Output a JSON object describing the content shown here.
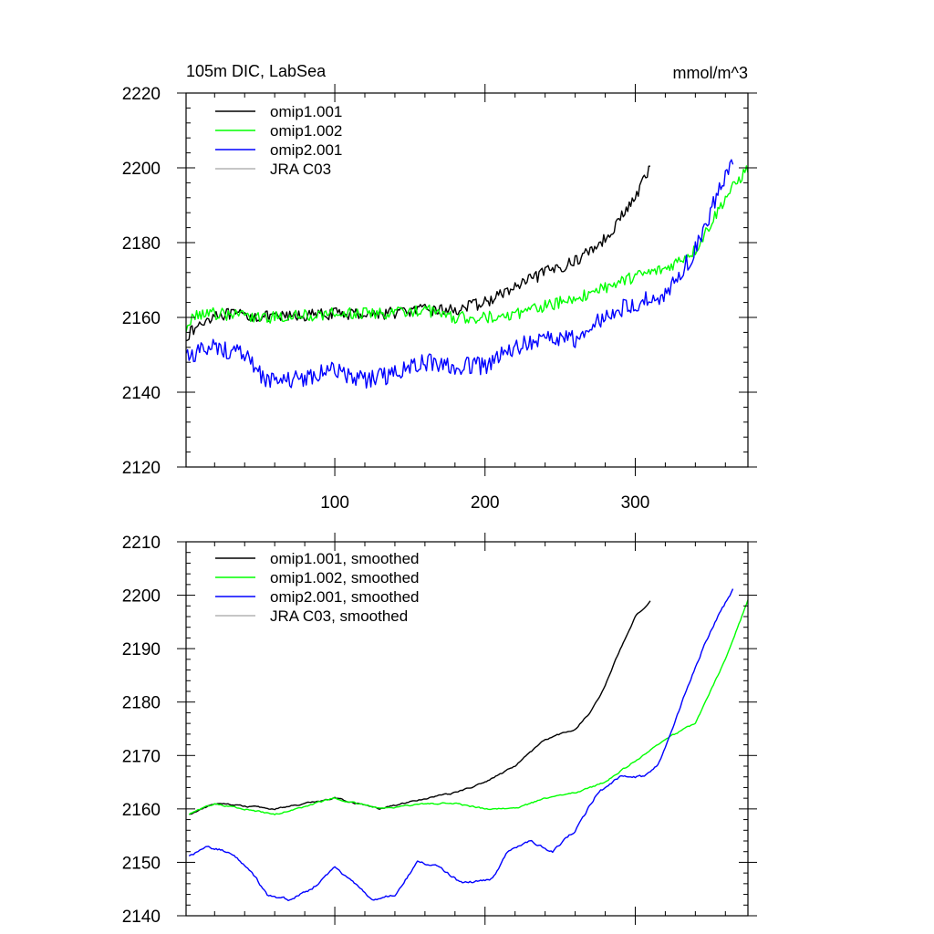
{
  "figure": {
    "title_left": "105m DIC, LabSea",
    "title_right": "mmol/m^3"
  },
  "chart_data": [
    {
      "type": "line",
      "xlim": [
        1,
        375
      ],
      "ylim": [
        2120,
        2220
      ],
      "x_ticks": [
        100,
        200,
        300
      ],
      "x_tick_labels": [
        "100",
        "200",
        "300"
      ],
      "y_ticks": [
        2120,
        2140,
        2160,
        2180,
        2200,
        2220
      ],
      "y_tick_labels": [
        "2120",
        "2140",
        "2160",
        "2180",
        "2200",
        "2220"
      ],
      "xlabel": "",
      "ylabel": "",
      "legend_position": "top-left",
      "series": [
        {
          "name": "omip1.001",
          "color": "#000000",
          "noise": 1.6,
          "x": [
            1,
            20,
            60,
            100,
            130,
            160,
            180,
            200,
            220,
            240,
            260,
            280,
            300,
            310
          ],
          "y": [
            2155,
            2161,
            2160,
            2161,
            2161,
            2162,
            2162,
            2164,
            2168,
            2172,
            2175,
            2181,
            2192,
            2200
          ]
        },
        {
          "name": "omip1.002",
          "color": "#00ff00",
          "noise": 1.6,
          "x": [
            1,
            5,
            20,
            60,
            100,
            130,
            160,
            180,
            200,
            220,
            240,
            260,
            280,
            300,
            320,
            340,
            360,
            375
          ],
          "y": [
            2155,
            2161,
            2161,
            2160,
            2161,
            2161,
            2162,
            2160,
            2160,
            2161,
            2163,
            2165,
            2168,
            2171,
            2173,
            2178,
            2192,
            2200
          ]
        },
        {
          "name": "omip2.001",
          "color": "#0000ff",
          "noise": 2.4,
          "x": [
            1,
            20,
            40,
            55,
            80,
            100,
            120,
            140,
            160,
            180,
            200,
            220,
            240,
            260,
            280,
            300,
            320,
            340,
            350,
            360,
            365
          ],
          "y": [
            2150,
            2152,
            2150,
            2143,
            2144,
            2146,
            2143,
            2145,
            2148,
            2147,
            2147,
            2152,
            2155,
            2154,
            2160,
            2164,
            2166,
            2178,
            2188,
            2198,
            2202
          ]
        },
        {
          "name": "JRA C03",
          "color": "#b3b3b3",
          "noise": 0,
          "x": [],
          "y": []
        }
      ]
    },
    {
      "type": "line",
      "xlim": [
        1,
        375
      ],
      "ylim": [
        2140,
        2210
      ],
      "x_ticks": [
        100,
        200,
        300
      ],
      "x_tick_labels": [],
      "y_ticks": [
        2140,
        2150,
        2160,
        2170,
        2180,
        2190,
        2200,
        2210
      ],
      "y_tick_labels": [
        "2140",
        "2150",
        "2160",
        "2170",
        "2180",
        "2190",
        "2200",
        "2210"
      ],
      "xlabel": "",
      "ylabel": "",
      "legend_position": "top-left",
      "series": [
        {
          "name": "omip1.001, smoothed",
          "color": "#000000",
          "noise": 0.3,
          "x": [
            3,
            20,
            60,
            100,
            130,
            160,
            180,
            200,
            220,
            240,
            260,
            270,
            280,
            290,
            300,
            310
          ],
          "y": [
            2159,
            2161,
            2160,
            2162,
            2160,
            2162,
            2163,
            2165,
            2168,
            2173,
            2175,
            2178,
            2183,
            2190,
            2196,
            2199
          ]
        },
        {
          "name": "omip1.002, smoothed",
          "color": "#00ff00",
          "noise": 0.3,
          "x": [
            3,
            20,
            60,
            100,
            130,
            160,
            180,
            200,
            220,
            240,
            260,
            280,
            300,
            320,
            340,
            360,
            375
          ],
          "y": [
            2159,
            2161,
            2159,
            2162,
            2160,
            2161,
            2161,
            2160,
            2160,
            2162,
            2163,
            2165,
            2169,
            2173,
            2176,
            2188,
            2199
          ]
        },
        {
          "name": "omip2.001, smoothed",
          "color": "#0000ff",
          "noise": 0.5,
          "x": [
            3,
            15,
            30,
            45,
            55,
            70,
            85,
            100,
            110,
            125,
            140,
            155,
            170,
            185,
            205,
            215,
            230,
            245,
            260,
            275,
            290,
            305,
            315,
            325,
            335,
            345,
            355,
            365
          ],
          "y": [
            2151,
            2153,
            2152,
            2148,
            2144,
            2143,
            2145,
            2149,
            2147,
            2143,
            2144,
            2150,
            2149,
            2146,
            2147,
            2152,
            2154,
            2152,
            2156,
            2163,
            2166,
            2166,
            2168,
            2175,
            2183,
            2190,
            2196,
            2201
          ]
        },
        {
          "name": "JRA C03, smoothed",
          "color": "#b3b3b3",
          "noise": 0,
          "x": [],
          "y": []
        }
      ]
    }
  ]
}
